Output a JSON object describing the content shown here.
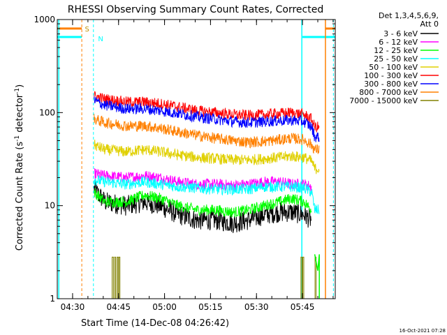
{
  "chart_data": {
    "type": "line",
    "title": "RHESSI Observing Summary Count Rates, Corrected",
    "xlabel": "Start Time (14-Dec-08 04:26:42)",
    "ylabel_main": "Corrected Count Rate (s",
    "ylabel_sup1": "-1",
    "ylabel_mid": " detector",
    "ylabel_sup2": "-1",
    "ylabel_end": ")",
    "x_range_minutes": [
      4.5,
      95.2
    ],
    "ylim": [
      1,
      1000
    ],
    "yscale": "log",
    "x_ticks": [
      {
        "label": "04:30",
        "min": 9.5
      },
      {
        "label": "04:45",
        "min": 24.5
      },
      {
        "label": "05:00",
        "min": 39.5
      },
      {
        "label": "05:15",
        "min": 54.5
      },
      {
        "label": "05:30",
        "min": 69.5
      },
      {
        "label": "05:45",
        "min": 84.5
      },
      {
        "label": "06:00",
        "min": 99.5
      }
    ],
    "y_ticks": [
      {
        "label": "1",
        "value": 1
      },
      {
        "label": "10",
        "value": 10
      },
      {
        "label": "100",
        "value": 100
      },
      {
        "label": "1000",
        "value": 1000
      }
    ],
    "legend_header": [
      "Det 1,3,4,5,6,9,",
      "Att 0"
    ],
    "series": [
      {
        "name": "3 - 6 keV",
        "color": "#000000",
        "points": [
          [
            16.5,
            15
          ],
          [
            20,
            11
          ],
          [
            27,
            10
          ],
          [
            33,
            11
          ],
          [
            38,
            10
          ],
          [
            44,
            8
          ],
          [
            50,
            7
          ],
          [
            56,
            7
          ],
          [
            62,
            6.5
          ],
          [
            67,
            7
          ],
          [
            72,
            8
          ],
          [
            77,
            8.5
          ],
          [
            81,
            8.5
          ],
          [
            85,
            8
          ],
          [
            87.5,
            7
          ]
        ]
      },
      {
        "name": "6 - 12 keV",
        "color": "#ff00ff",
        "points": [
          [
            16.5,
            22
          ],
          [
            20,
            21
          ],
          [
            27,
            20
          ],
          [
            33,
            21
          ],
          [
            38,
            20
          ],
          [
            44,
            18
          ],
          [
            50,
            17
          ],
          [
            56,
            17
          ],
          [
            62,
            16.5
          ],
          [
            67,
            17
          ],
          [
            72,
            18
          ],
          [
            77,
            18
          ],
          [
            81,
            17
          ],
          [
            85,
            17
          ],
          [
            87.5,
            16
          ]
        ]
      },
      {
        "name": "12 - 25 keV",
        "color": "#00ff00",
        "points": [
          [
            16.5,
            14
          ],
          [
            20,
            11
          ],
          [
            27,
            11
          ],
          [
            33,
            13
          ],
          [
            38,
            12
          ],
          [
            44,
            10
          ],
          [
            50,
            9
          ],
          [
            56,
            9
          ],
          [
            62,
            8.5
          ],
          [
            67,
            9
          ],
          [
            72,
            10
          ],
          [
            77,
            11
          ],
          [
            81,
            12
          ],
          [
            85,
            11
          ],
          [
            87.5,
            9
          ]
        ]
      },
      {
        "name": "25 - 50 keV",
        "color": "#00ffff",
        "points": [
          [
            16.5,
            19
          ],
          [
            20,
            18
          ],
          [
            27,
            17
          ],
          [
            33,
            18
          ],
          [
            38,
            17
          ],
          [
            44,
            16
          ],
          [
            50,
            15.5
          ],
          [
            56,
            15
          ],
          [
            62,
            15
          ],
          [
            67,
            15
          ],
          [
            72,
            16
          ],
          [
            77,
            16
          ],
          [
            81,
            16
          ],
          [
            85,
            15.5
          ],
          [
            87.5,
            14
          ],
          [
            88.5,
            9
          ],
          [
            90,
            9
          ]
        ]
      },
      {
        "name": "50 - 100 keV",
        "color": "#e0d000",
        "points": [
          [
            16.5,
            45
          ],
          [
            20,
            40
          ],
          [
            27,
            38
          ],
          [
            33,
            40
          ],
          [
            38,
            38
          ],
          [
            44,
            35
          ],
          [
            50,
            33
          ],
          [
            56,
            32
          ],
          [
            62,
            31
          ],
          [
            67,
            31
          ],
          [
            72,
            32
          ],
          [
            77,
            33
          ],
          [
            81,
            34
          ],
          [
            85,
            33
          ],
          [
            87.5,
            30
          ],
          [
            88.5,
            25
          ],
          [
            90,
            25
          ]
        ]
      },
      {
        "name": "100 - 300 keV",
        "color": "#ff0000",
        "points": [
          [
            16.5,
            150
          ],
          [
            20,
            140
          ],
          [
            27,
            130
          ],
          [
            33,
            130
          ],
          [
            38,
            125
          ],
          [
            44,
            115
          ],
          [
            50,
            105
          ],
          [
            56,
            100
          ],
          [
            62,
            95
          ],
          [
            67,
            93
          ],
          [
            72,
            95
          ],
          [
            77,
            98
          ],
          [
            81,
            100
          ],
          [
            85,
            95
          ],
          [
            87.5,
            85
          ],
          [
            88.5,
            70
          ],
          [
            90,
            70
          ]
        ]
      },
      {
        "name": "300 - 800 keV",
        "color": "#0000ff",
        "points": [
          [
            16.5,
            135
          ],
          [
            20,
            120
          ],
          [
            27,
            110
          ],
          [
            33,
            110
          ],
          [
            38,
            105
          ],
          [
            44,
            98
          ],
          [
            50,
            90
          ],
          [
            56,
            85
          ],
          [
            62,
            80
          ],
          [
            67,
            78
          ],
          [
            72,
            80
          ],
          [
            77,
            82
          ],
          [
            81,
            83
          ],
          [
            85,
            80
          ],
          [
            87.5,
            70
          ],
          [
            88.5,
            55
          ],
          [
            90,
            55
          ]
        ]
      },
      {
        "name": "800 - 7000 keV",
        "color": "#ff8000",
        "points": [
          [
            16.5,
            85
          ],
          [
            20,
            78
          ],
          [
            27,
            72
          ],
          [
            33,
            72
          ],
          [
            38,
            68
          ],
          [
            44,
            62
          ],
          [
            50,
            57
          ],
          [
            56,
            53
          ],
          [
            62,
            50
          ],
          [
            67,
            48
          ],
          [
            72,
            49
          ],
          [
            77,
            51
          ],
          [
            81,
            53
          ],
          [
            85,
            51
          ],
          [
            87.5,
            45
          ],
          [
            88.5,
            40
          ],
          [
            90,
            40
          ]
        ]
      },
      {
        "name": "7000 - 15000 keV",
        "color": "#808000",
        "points": []
      }
    ],
    "annotations": {
      "flag_s": "S",
      "flag_n": "N"
    }
  },
  "footer": {
    "timestamp": "16-Oct-2021 07:28"
  }
}
